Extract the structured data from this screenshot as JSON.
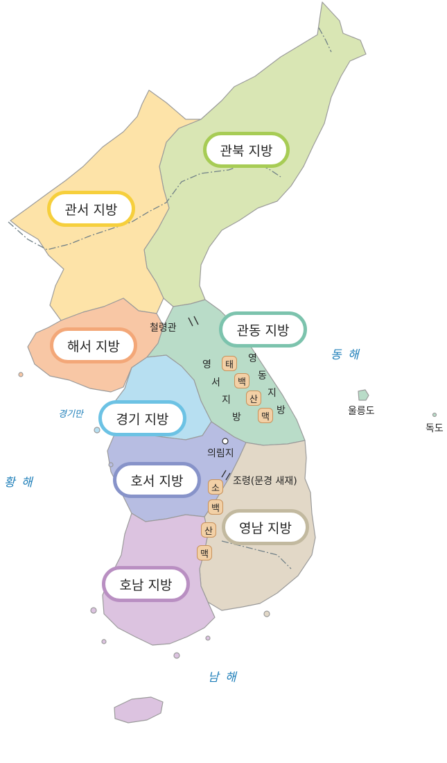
{
  "regions": [
    {
      "key": "gwanbuk",
      "label": "관북 지방",
      "fill": "#d9e6b4",
      "border": "#a7cc55"
    },
    {
      "key": "gwanseo",
      "label": "관서 지방",
      "fill": "#fde3a8",
      "border": "#f6cf3c"
    },
    {
      "key": "haeseo",
      "label": "해서 지방",
      "fill": "#f8c7a5",
      "border": "#f3a778"
    },
    {
      "key": "gwandong",
      "label": "관동 지방",
      "fill": "#b9dcc8",
      "border": "#7cc3ad"
    },
    {
      "key": "gyeonggi",
      "label": "경기 지방",
      "fill": "#b7dff1",
      "border": "#6cc2e4"
    },
    {
      "key": "hoseo",
      "label": "호서 지방",
      "fill": "#b7bde2",
      "border": "#8793c9"
    },
    {
      "key": "yeongnam",
      "label": "영남 지방",
      "fill": "#e2d8c7",
      "border": "#c2b99f"
    },
    {
      "key": "honam",
      "label": "호남 지방",
      "fill": "#dcc3e0",
      "border": "#b98fc2"
    }
  ],
  "places": {
    "cheollyeonggwan": "철령관",
    "uirimji": "의림지",
    "joryeong": "조령(문경 새재)",
    "ulleungdo": "울릉도",
    "dokdo": "독도"
  },
  "seas": {
    "east": "동 해",
    "west": "황 해",
    "south": "남 해",
    "bay": "경기만"
  },
  "mountains": {
    "taebaek": [
      "태",
      "백",
      "산",
      "맥"
    ],
    "sobaek": [
      "소",
      "백",
      "산",
      "맥"
    ]
  },
  "yeongseo_chars": [
    "영",
    "서",
    "지",
    "방"
  ],
  "yeongdong_chars": [
    "영",
    "동",
    "지",
    "방"
  ],
  "colors": {
    "sea_text": "#1f7fb9",
    "mountain_badge": "#f2d0a6",
    "boundary": "#9a9a9a"
  }
}
